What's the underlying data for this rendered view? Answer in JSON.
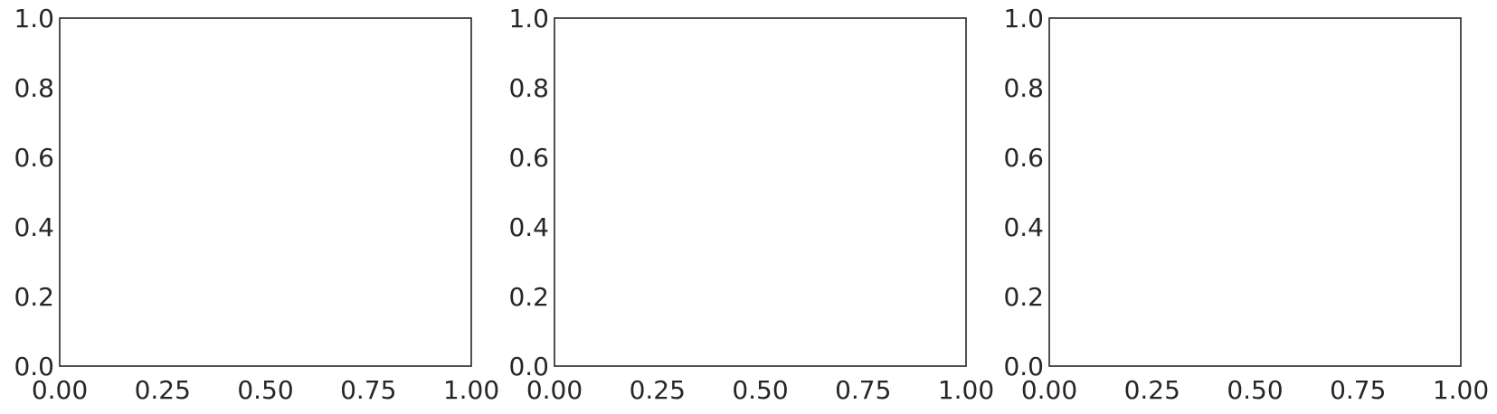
{
  "chart_data": [
    {
      "type": "line",
      "title": "",
      "xlabel": "",
      "ylabel": "",
      "xlim": [
        0,
        1
      ],
      "ylim": [
        0,
        1
      ],
      "xticks": [
        0,
        0.25,
        0.5,
        0.75,
        1
      ],
      "yticks": [
        0,
        0.2,
        0.4,
        0.6,
        0.8,
        1
      ],
      "xtick_labels": [
        "0.00",
        "0.25",
        "0.50",
        "0.75",
        "1.00"
      ],
      "ytick_labels": [
        "0.0",
        "0.2",
        "0.4",
        "0.6",
        "0.8",
        "1.0"
      ],
      "grid": false,
      "series": []
    },
    {
      "type": "line",
      "title": "",
      "xlabel": "",
      "ylabel": "",
      "xlim": [
        0,
        1
      ],
      "ylim": [
        0,
        1
      ],
      "xticks": [
        0,
        0.25,
        0.5,
        0.75,
        1
      ],
      "yticks": [
        0,
        0.2,
        0.4,
        0.6,
        0.8,
        1
      ],
      "xtick_labels": [
        "0.00",
        "0.25",
        "0.50",
        "0.75",
        "1.00"
      ],
      "ytick_labels": [
        "0.0",
        "0.2",
        "0.4",
        "0.6",
        "0.8",
        "1.0"
      ],
      "grid": false,
      "series": []
    },
    {
      "type": "line",
      "title": "",
      "xlabel": "",
      "ylabel": "",
      "xlim": [
        0,
        1
      ],
      "ylim": [
        0,
        1
      ],
      "xticks": [
        0,
        0.25,
        0.5,
        0.75,
        1
      ],
      "yticks": [
        0,
        0.2,
        0.4,
        0.6,
        0.8,
        1
      ],
      "xtick_labels": [
        "0.00",
        "0.25",
        "0.50",
        "0.75",
        "1.00"
      ],
      "ytick_labels": [
        "0.0",
        "0.2",
        "0.4",
        "0.6",
        "0.8",
        "1.0"
      ],
      "grid": false,
      "series": []
    }
  ]
}
